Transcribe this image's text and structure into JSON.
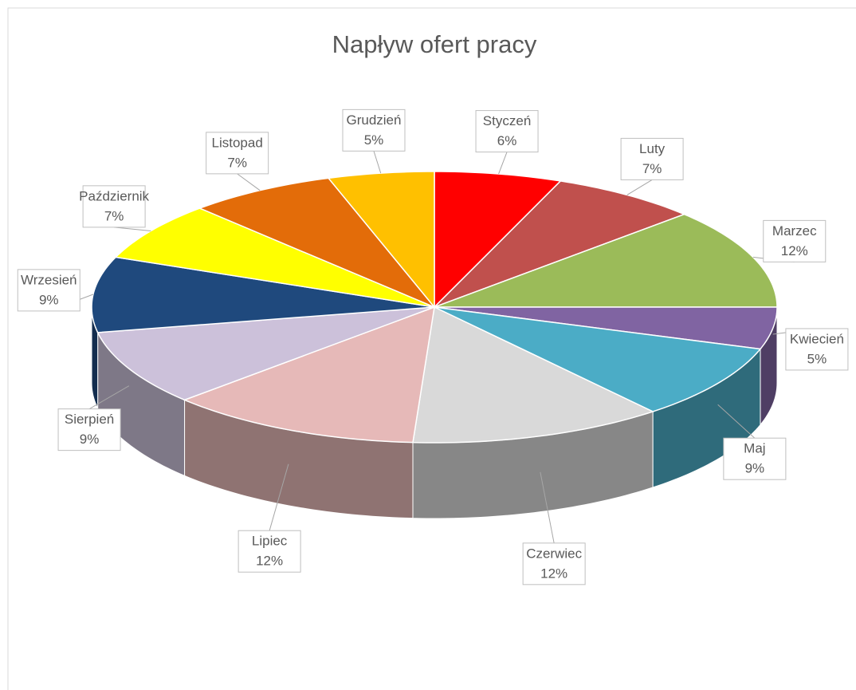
{
  "chart_data": {
    "type": "pie3d",
    "title": "Napływ ofert pracy",
    "categories": [
      "Styczeń",
      "Luty",
      "Marzec",
      "Kwiecień",
      "Maj",
      "Czerwiec",
      "Lipiec",
      "Sierpień",
      "Wrzesień",
      "Październik",
      "Listopad",
      "Grudzień"
    ],
    "values": [
      6,
      7,
      12,
      5,
      9,
      12,
      12,
      9,
      9,
      7,
      7,
      5
    ],
    "value_labels": [
      "6%",
      "7%",
      "12%",
      "5%",
      "9%",
      "12%",
      "12%",
      "9%",
      "9%",
      "7%",
      "7%",
      "5%"
    ],
    "colors": [
      "#ff0000",
      "#c0504d",
      "#9bbb59",
      "#8064a2",
      "#4bacc6",
      "#d9d9d9",
      "#e6b9b8",
      "#ccc1da",
      "#1f497d",
      "#ffff00",
      "#e36c09",
      "#ffc000"
    ]
  }
}
